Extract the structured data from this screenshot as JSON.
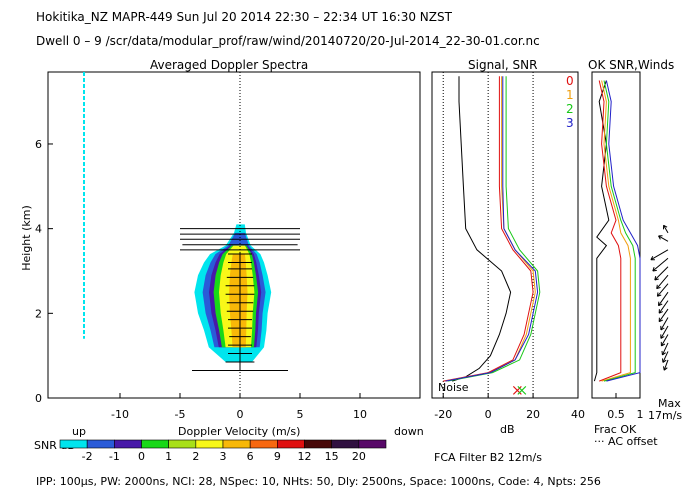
{
  "header": {
    "line1": "Hokitika_NZ   MAPR-449   Sun Jul 20 2014 22:30 – 22:34 UT 16:30 NZST",
    "line2": "Dwell   0  –   9    /scr/data/modular_prof/raw/wind/20140720/20-Jul-2014_22-30-01.cor.nc"
  },
  "footer": {
    "params": "IPP: 100μs,   PW: 2000ns,   NCI:  28,   NSpec: 10,  NHts: 50,   Dly: 2500ns,   Space: 1000ns,   Code: 4,   Npts: 256",
    "filter": "FCA Filter B2 12m/s"
  },
  "colors": {
    "snr_scale": [
      "#00e5ee",
      "#2a5bd8",
      "#4818a8",
      "#18d818",
      "#a8e018",
      "#f8f818",
      "#f8b808",
      "#f86810",
      "#e01010",
      "#480808",
      "#301040",
      "#580868"
    ],
    "signal_line": "#000000",
    "snr0": "#e01010",
    "snr1": "#f0a010",
    "snr2": "#18c818",
    "snr3": "#2020c8"
  },
  "chart_data": [
    {
      "type": "heatmap",
      "title": "Averaged Doppler Spectra",
      "xlabel": "Doppler Velocity (m/s)",
      "ylabel": "Height (km)",
      "xlim": [
        -16,
        15
      ],
      "ylim": [
        0,
        7.7
      ],
      "xticks": [
        -10,
        -5,
        0,
        5,
        10
      ],
      "yticks": [
        0,
        2,
        4,
        6
      ],
      "x_left_label": "up",
      "x_right_label": "down",
      "colorbar": {
        "label": "SNR dB",
        "ticks": [
          "-2",
          "-1",
          "0",
          "1",
          "2",
          "3",
          "6",
          "9",
          "12",
          "15",
          "20"
        ]
      },
      "zero_line": true,
      "noise_column_velocity": -13,
      "noise_column_height_range": [
        1.4,
        7.7
      ],
      "spectrum_width_profile": [
        {
          "h": 0.85,
          "min": -1.2,
          "max": 1.0
        },
        {
          "h": 1.2,
          "min": -2.6,
          "max": 2.0
        },
        {
          "h": 1.6,
          "min": -3.0,
          "max": 2.2
        },
        {
          "h": 2.0,
          "min": -3.5,
          "max": 2.3
        },
        {
          "h": 2.5,
          "min": -3.8,
          "max": 2.6
        },
        {
          "h": 2.9,
          "min": -3.5,
          "max": 2.3
        },
        {
          "h": 3.2,
          "min": -3.0,
          "max": 2.0
        },
        {
          "h": 3.4,
          "min": -2.5,
          "max": 1.7
        },
        {
          "h": 3.6,
          "min": -1.2,
          "max": 0.9
        },
        {
          "h": 3.9,
          "min": -0.5,
          "max": 0.5
        },
        {
          "h": 4.1,
          "min": -0.3,
          "max": 0.4
        }
      ],
      "error_bars": [
        {
          "h": 0.65,
          "half_width": 4.0
        },
        {
          "h": 0.85,
          "half_width": 1.2
        },
        {
          "h": 1.05,
          "half_width": 1.0
        },
        {
          "h": 1.25,
          "half_width": 1.0
        },
        {
          "h": 1.45,
          "half_width": 0.9
        },
        {
          "h": 1.65,
          "half_width": 1.0
        },
        {
          "h": 1.85,
          "half_width": 1.0
        },
        {
          "h": 2.05,
          "half_width": 1.1
        },
        {
          "h": 2.25,
          "half_width": 1.1
        },
        {
          "h": 2.45,
          "half_width": 1.2
        },
        {
          "h": 2.65,
          "half_width": 1.2
        },
        {
          "h": 2.85,
          "half_width": 1.1
        },
        {
          "h": 3.05,
          "half_width": 1.0
        },
        {
          "h": 3.2,
          "half_width": 1.0
        },
        {
          "h": 3.4,
          "half_width": 1.0
        },
        {
          "h": 3.5,
          "half_width": 5.0
        },
        {
          "h": 3.62,
          "half_width": 4.8
        },
        {
          "h": 3.75,
          "half_width": 5.0
        },
        {
          "h": 3.87,
          "half_width": 5.0
        },
        {
          "h": 4.0,
          "half_width": 5.0
        }
      ]
    },
    {
      "type": "line",
      "title": "Signal, SNR",
      "xlabel": "dB",
      "xlim": [
        -25,
        40
      ],
      "ylim": [
        0,
        7.7
      ],
      "xticks": [
        -20,
        0,
        20,
        40
      ],
      "vlines": [
        -20,
        0,
        20
      ],
      "noise_label": "Noise",
      "legend": [
        "0",
        "1",
        "2",
        "3"
      ],
      "x_markers": [
        {
          "x": 13,
          "h": 0.18
        },
        {
          "x": 15,
          "h": 0.18
        }
      ],
      "series": [
        {
          "values": [
            {
              "h": 0.4,
              "x": -16
            },
            {
              "h": 0.5,
              "x": -10
            },
            {
              "h": 0.7,
              "x": -4
            },
            {
              "h": 1.0,
              "x": 1
            },
            {
              "h": 1.5,
              "x": 5
            },
            {
              "h": 2.0,
              "x": 8
            },
            {
              "h": 2.5,
              "x": 10
            },
            {
              "h": 3.0,
              "x": 6
            },
            {
              "h": 3.5,
              "x": -5
            },
            {
              "h": 4.0,
              "x": -10
            },
            {
              "h": 5.0,
              "x": -11
            },
            {
              "h": 6.0,
              "x": -12
            },
            {
              "h": 7.0,
              "x": -13
            },
            {
              "h": 7.6,
              "x": -13
            }
          ]
        },
        {
          "values": [
            {
              "h": 0.4,
              "x": -20
            },
            {
              "h": 0.6,
              "x": 0
            },
            {
              "h": 0.9,
              "x": 11
            },
            {
              "h": 1.5,
              "x": 16
            },
            {
              "h": 2.0,
              "x": 18
            },
            {
              "h": 2.5,
              "x": 20
            },
            {
              "h": 3.0,
              "x": 19
            },
            {
              "h": 3.5,
              "x": 11
            },
            {
              "h": 4.0,
              "x": 6
            },
            {
              "h": 5.0,
              "x": 5
            },
            {
              "h": 6.0,
              "x": 5
            },
            {
              "h": 7.0,
              "x": 5
            },
            {
              "h": 7.6,
              "x": 5
            }
          ]
        },
        {
          "values": [
            {
              "h": 0.4,
              "x": -19
            },
            {
              "h": 0.6,
              "x": 1
            },
            {
              "h": 0.9,
              "x": 12
            },
            {
              "h": 1.5,
              "x": 17
            },
            {
              "h": 2.0,
              "x": 19
            },
            {
              "h": 2.5,
              "x": 21
            },
            {
              "h": 3.0,
              "x": 20
            },
            {
              "h": 3.5,
              "x": 12
            },
            {
              "h": 4.0,
              "x": 7
            },
            {
              "h": 5.0,
              "x": 6
            },
            {
              "h": 6.0,
              "x": 6
            },
            {
              "h": 7.0,
              "x": 6
            },
            {
              "h": 7.6,
              "x": 6
            }
          ]
        },
        {
          "values": [
            {
              "h": 0.4,
              "x": -18
            },
            {
              "h": 0.6,
              "x": 2
            },
            {
              "h": 0.9,
              "x": 14
            },
            {
              "h": 1.5,
              "x": 19
            },
            {
              "h": 2.0,
              "x": 21
            },
            {
              "h": 2.5,
              "x": 23
            },
            {
              "h": 3.0,
              "x": 22
            },
            {
              "h": 3.5,
              "x": 14
            },
            {
              "h": 4.0,
              "x": 9
            },
            {
              "h": 5.0,
              "x": 8
            },
            {
              "h": 6.0,
              "x": 8
            },
            {
              "h": 7.0,
              "x": 8
            },
            {
              "h": 7.6,
              "x": 8
            }
          ]
        },
        {
          "values": [
            {
              "h": 0.4,
              "x": -19
            },
            {
              "h": 0.6,
              "x": 1
            },
            {
              "h": 0.9,
              "x": 12
            },
            {
              "h": 1.5,
              "x": 18
            },
            {
              "h": 2.0,
              "x": 20
            },
            {
              "h": 2.5,
              "x": 22
            },
            {
              "h": 3.0,
              "x": 21
            },
            {
              "h": 3.5,
              "x": 12
            },
            {
              "h": 4.0,
              "x": 7
            },
            {
              "h": 5.0,
              "x": 6.5
            },
            {
              "h": 6.0,
              "x": 6.5
            },
            {
              "h": 7.0,
              "x": 6.5
            },
            {
              "h": 7.6,
              "x": 6.5
            }
          ]
        }
      ]
    },
    {
      "type": "line",
      "title": "OK SNR,Winds",
      "xlim": [
        0,
        1
      ],
      "ylim": [
        0,
        7.7
      ],
      "xticks": [
        0.5,
        1
      ],
      "xlabel_line1": "Frac OK",
      "xlabel_line2": "··· AC offset",
      "series": [
        {
          "values": [
            {
              "h": 0.4,
              "x": 0.05
            },
            {
              "h": 0.6,
              "x": 0.1
            },
            {
              "h": 1.0,
              "x": 0.1
            },
            {
              "h": 2.0,
              "x": 0.1
            },
            {
              "h": 3.3,
              "x": 0.1
            },
            {
              "h": 3.6,
              "x": 0.3
            },
            {
              "h": 3.8,
              "x": 0.1
            },
            {
              "h": 4.2,
              "x": 0.35
            },
            {
              "h": 5.0,
              "x": 0.2
            },
            {
              "h": 6.0,
              "x": 0.3
            },
            {
              "h": 7.0,
              "x": 0.15
            },
            {
              "h": 7.5,
              "x": 0.3
            }
          ]
        },
        {
          "values": [
            {
              "h": 0.4,
              "x": 0.15
            },
            {
              "h": 0.6,
              "x": 0.6
            },
            {
              "h": 1.0,
              "x": 0.6
            },
            {
              "h": 2.0,
              "x": 0.6
            },
            {
              "h": 3.3,
              "x": 0.6
            },
            {
              "h": 3.6,
              "x": 0.55
            },
            {
              "h": 3.9,
              "x": 0.4
            },
            {
              "h": 4.2,
              "x": 0.5
            },
            {
              "h": 5.0,
              "x": 0.3
            },
            {
              "h": 6.0,
              "x": 0.2
            },
            {
              "h": 7.0,
              "x": 0.25
            },
            {
              "h": 7.5,
              "x": 0.15
            }
          ]
        },
        {
          "values": [
            {
              "h": 0.4,
              "x": 0.2
            },
            {
              "h": 0.6,
              "x": 0.8
            },
            {
              "h": 1.0,
              "x": 0.8
            },
            {
              "h": 2.0,
              "x": 0.8
            },
            {
              "h": 3.3,
              "x": 0.8
            },
            {
              "h": 3.6,
              "x": 0.75
            },
            {
              "h": 3.9,
              "x": 0.6
            },
            {
              "h": 4.2,
              "x": 0.55
            },
            {
              "h": 5.0,
              "x": 0.35
            },
            {
              "h": 6.0,
              "x": 0.25
            },
            {
              "h": 7.0,
              "x": 0.3
            },
            {
              "h": 7.5,
              "x": 0.2
            }
          ]
        },
        {
          "values": [
            {
              "h": 0.4,
              "x": 0.25
            },
            {
              "h": 0.6,
              "x": 0.9
            },
            {
              "h": 1.0,
              "x": 0.9
            },
            {
              "h": 2.0,
              "x": 0.9
            },
            {
              "h": 3.3,
              "x": 0.9
            },
            {
              "h": 3.6,
              "x": 0.85
            },
            {
              "h": 3.9,
              "x": 0.7
            },
            {
              "h": 4.2,
              "x": 0.6
            },
            {
              "h": 5.0,
              "x": 0.4
            },
            {
              "h": 6.0,
              "x": 0.3
            },
            {
              "h": 7.0,
              "x": 0.35
            },
            {
              "h": 7.5,
              "x": 0.25
            }
          ]
        },
        {
          "values": [
            {
              "h": 0.4,
              "x": 0.3
            },
            {
              "h": 0.6,
              "x": 1.0
            },
            {
              "h": 1.0,
              "x": 1.0
            },
            {
              "h": 2.0,
              "x": 1.0
            },
            {
              "h": 3.3,
              "x": 1.0
            },
            {
              "h": 3.6,
              "x": 0.95
            },
            {
              "h": 3.9,
              "x": 0.8
            },
            {
              "h": 4.2,
              "x": 0.65
            },
            {
              "h": 5.0,
              "x": 0.45
            },
            {
              "h": 6.0,
              "x": 0.35
            },
            {
              "h": 7.0,
              "x": 0.4
            },
            {
              "h": 7.5,
              "x": 0.3
            }
          ]
        }
      ]
    },
    {
      "type": "wind_barbs",
      "scale_label_line1": "Max",
      "scale_label_line2": "17m/s",
      "heights": [
        0.9,
        1.1,
        1.3,
        1.5,
        1.7,
        1.9,
        2.1,
        2.3,
        2.5,
        2.7,
        2.9,
        3.1,
        3.3,
        3.5,
        3.7,
        3.9
      ],
      "direction_deg": [
        200,
        205,
        205,
        210,
        210,
        210,
        215,
        215,
        215,
        220,
        220,
        225,
        230,
        240,
        300,
        330
      ],
      "speed_frac": [
        0.5,
        0.55,
        0.6,
        0.6,
        0.65,
        0.65,
        0.7,
        0.7,
        0.75,
        0.75,
        0.8,
        0.85,
        0.9,
        0.9,
        0.5,
        0.4
      ]
    }
  ]
}
